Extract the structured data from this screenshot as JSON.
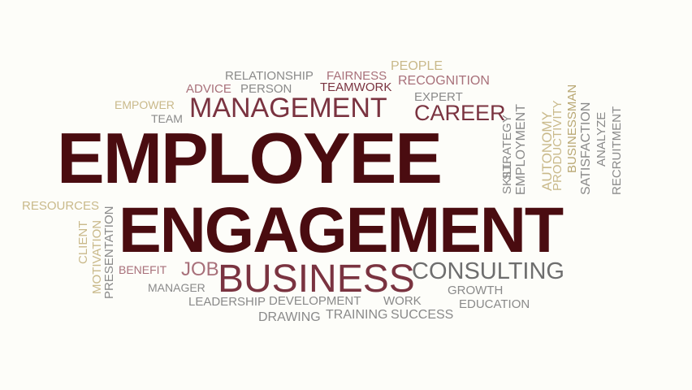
{
  "palette": {
    "background": "#fdfdf9",
    "dark_red": "#4a0c10",
    "maroon": "#7a3340",
    "rose": "#a8707a",
    "gray": "#8a8a8a",
    "gray_dark": "#6e6e6e",
    "tan": "#c9b98a",
    "tan_dark": "#b9a874"
  },
  "words": {
    "employee": "EMPLOYEE",
    "engagement": "ENGAGEMENT",
    "management": "MANAGEMENT",
    "business": "BUSINESS",
    "consulting": "CONSULTING",
    "career": "CAREER",
    "relationship": "RELATIONSHIP",
    "fairness": "FAIRNESS",
    "people": "PEOPLE",
    "advice": "ADVICE",
    "person": "PERSON",
    "teamwork": "TEAMWORK",
    "recognition": "RECOGNITION",
    "empower": "EMPOWER",
    "expert": "EXPERT",
    "team": "TEAM",
    "resources": "RESOURCES",
    "client": "CLIENT",
    "motivation": "MOTIVATION",
    "presentation": "PRESENTATION",
    "benefit": "BENEFIT",
    "job": "JOB",
    "manager": "MANAGER",
    "leadership": "LEADERSHIP",
    "development": "DEVELOPMENT",
    "work": "WORK",
    "education": "EDUCATION",
    "growth": "GROWTH",
    "drawing": "DRAWING",
    "training": "TRAINING",
    "success": "SUCCESS",
    "strategy": "STRATEGY",
    "skill": "SKILL",
    "employment": "EMPLOYMENT",
    "autonomy": "AUTONOMY",
    "productivity": "PRODUCTIVITY",
    "businessman": "BUSINESSMAN",
    "satisfaction": "SATISFACTION",
    "analyze": "ANALYZE",
    "recruitment": "RECRUITMENT"
  }
}
